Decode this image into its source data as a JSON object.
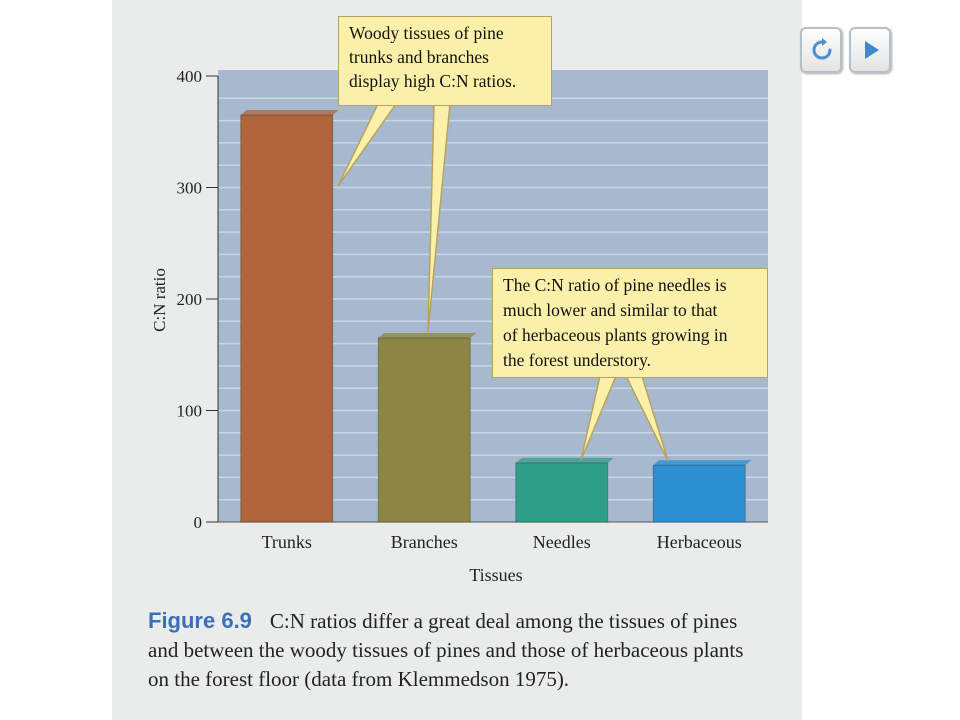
{
  "nav": {
    "replay_icon": "replay-icon",
    "next_icon": "play-next-icon"
  },
  "colors": {
    "trunks": "#b0643c",
    "branches": "#8d8642",
    "needles": "#2f9e87",
    "herbaceous": "#2b8fd1",
    "plot_bg": "#a7b9cf",
    "callout_bg": "#fbf0a9"
  },
  "chart_data": {
    "type": "bar",
    "categories": [
      "Trunks",
      "Branches",
      "Needles",
      "Herbaceous"
    ],
    "values": [
      365,
      165,
      53,
      51
    ],
    "xlabel": "Tissues",
    "ylabel": "C:N ratio",
    "ylim": [
      0,
      400
    ],
    "yticks": [
      "0",
      "100",
      "200",
      "300",
      "400"
    ],
    "grid": true,
    "annotations": [
      "Woody tissues of pine trunks and branches display high C:N ratios.",
      "The C:N ratio of pine needles is much lower and similar to that of herbaceous plants growing in the forest understory."
    ]
  },
  "callouts": {
    "woody": [
      "Woody tissues of pine",
      "trunks and branches",
      "display high C:N ratios."
    ],
    "needles": [
      "The C:N ratio of pine needles is",
      "much lower and similar to that",
      "of herbaceous plants growing in",
      "the forest understory."
    ]
  },
  "caption": {
    "label": "Figure 6.9",
    "text": "C:N ratios differ a great deal among the tissues of pines and between the woody tissues of pines and those of herbaceous plants on the forest floor (data from Klemmedson 1975)."
  }
}
